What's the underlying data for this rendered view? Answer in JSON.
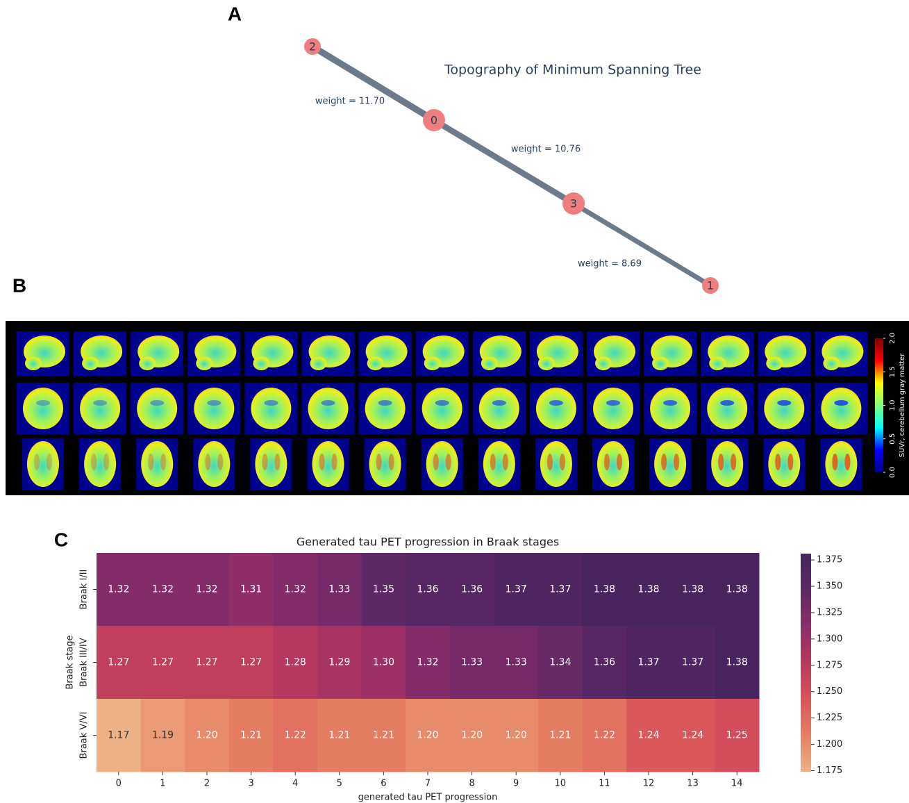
{
  "chart_data": [
    {
      "type": "network",
      "panel": "A",
      "title": "Topography of Minimum Spanning Tree",
      "nodes": [
        "0",
        "1",
        "2",
        "3"
      ],
      "edges": [
        {
          "source": "2",
          "target": "0",
          "weight": 11.7,
          "label": "weight = 11.70"
        },
        {
          "source": "0",
          "target": "3",
          "weight": 10.76,
          "label": "weight = 10.76"
        },
        {
          "source": "3",
          "target": "1",
          "weight": 8.69,
          "label": "weight = 8.69"
        }
      ],
      "node_color": "#ee7f7f",
      "edge_color": "#6c7a89"
    },
    {
      "type": "image",
      "panel": "B",
      "colorbar_label": "SUVr, cerebellum gray matter",
      "clim": [
        0,
        2
      ],
      "cticks": [
        {
          "value": 0,
          "label": "0.0"
        },
        {
          "value": 0.5,
          "label": "0.5"
        },
        {
          "value": 1,
          "label": "1.0"
        },
        {
          "value": 1.5,
          "label": "1.5"
        },
        {
          "value": 2,
          "label": "2.0"
        }
      ],
      "colormap": [
        "#00008f",
        "#0000ff",
        "#00ffff",
        "#7fff7f",
        "#ffff00",
        "#ff0000",
        "#7f0000"
      ]
    },
    {
      "type": "heatmap",
      "panel": "C",
      "title": "Generated tau PET progression in Braak stages",
      "xlabel": "generated tau PET progression",
      "ylabel": "Braak stage",
      "x": [
        "0",
        "1",
        "2",
        "3",
        "4",
        "5",
        "6",
        "7",
        "8",
        "9",
        "10",
        "11",
        "12",
        "13",
        "14"
      ],
      "y": [
        "Braak I/II",
        "Braak III/IV",
        "Braak V/VI"
      ],
      "values": [
        [
          1.32,
          1.32,
          1.32,
          1.31,
          1.32,
          1.33,
          1.35,
          1.36,
          1.36,
          1.37,
          1.37,
          1.38,
          1.38,
          1.38,
          1.38
        ],
        [
          1.27,
          1.27,
          1.27,
          1.27,
          1.28,
          1.29,
          1.3,
          1.32,
          1.33,
          1.33,
          1.34,
          1.36,
          1.37,
          1.37,
          1.38
        ],
        [
          1.17,
          1.19,
          1.2,
          1.21,
          1.22,
          1.21,
          1.21,
          1.2,
          1.2,
          1.2,
          1.21,
          1.22,
          1.24,
          1.24,
          1.25
        ]
      ],
      "value_labels": [
        [
          "1.32",
          "1.32",
          "1.32",
          "1.31",
          "1.32",
          "1.33",
          "1.35",
          "1.36",
          "1.36",
          "1.37",
          "1.37",
          "1.38",
          "1.38",
          "1.38",
          "1.38"
        ],
        [
          "1.27",
          "1.27",
          "1.27",
          "1.27",
          "1.28",
          "1.29",
          "1.30",
          "1.32",
          "1.33",
          "1.33",
          "1.34",
          "1.36",
          "1.37",
          "1.37",
          "1.38"
        ],
        [
          "1.17",
          "1.19",
          "1.20",
          "1.21",
          "1.22",
          "1.21",
          "1.21",
          "1.20",
          "1.20",
          "1.20",
          "1.21",
          "1.22",
          "1.24",
          "1.24",
          "1.25"
        ]
      ],
      "clim": [
        1.174,
        1.381
      ],
      "cticks": [
        1.175,
        {
          "value": 1.2,
          "label": "1.200"
        },
        1.225,
        {
          "value": 1.25,
          "label": "1.250"
        },
        1.275,
        {
          "value": 1.3,
          "label": "1.300"
        },
        1.325,
        {
          "value": 1.35,
          "label": "1.350"
        },
        1.375
      ],
      "colormap": [
        "#eeb185",
        "#e67f62",
        "#da5459",
        "#b9385f",
        "#8e2d69",
        "#5f2866",
        "#472561"
      ]
    }
  ]
}
